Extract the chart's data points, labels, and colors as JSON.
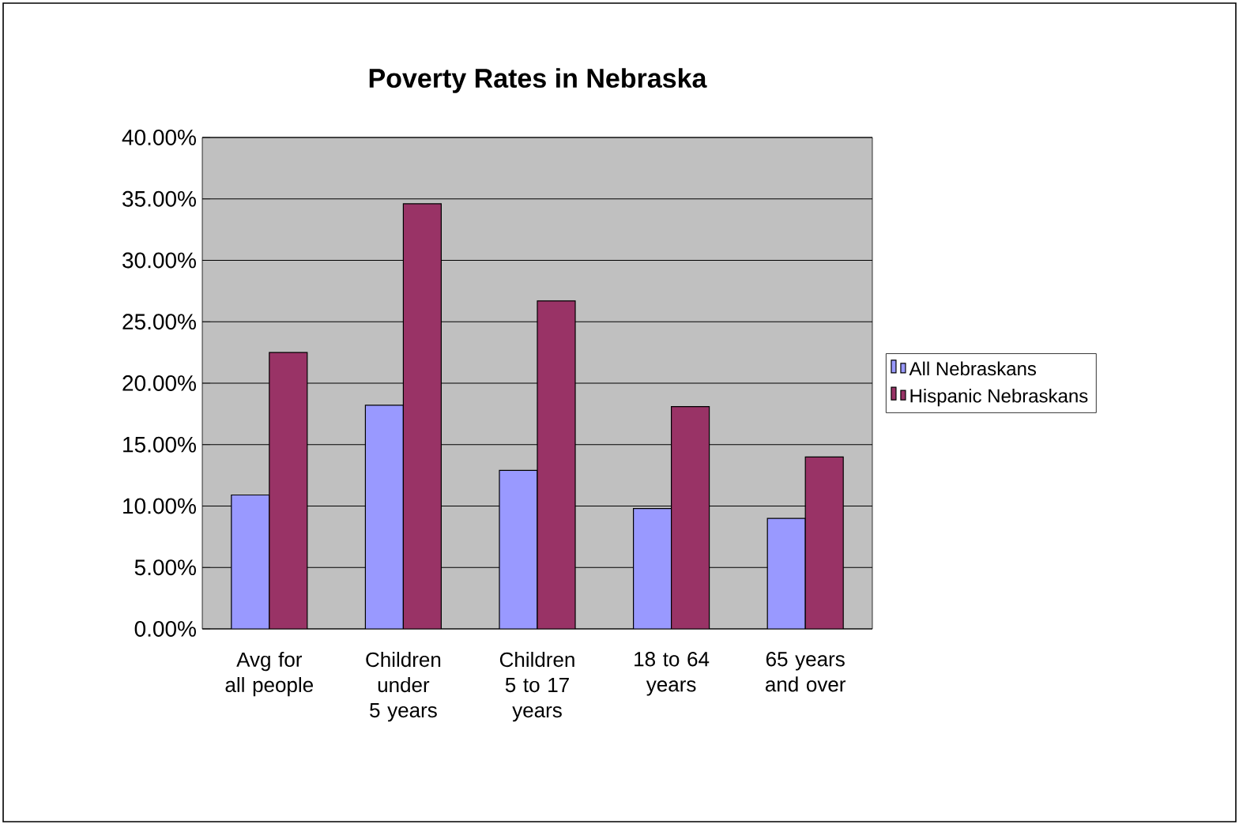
{
  "chart_data": {
    "type": "bar",
    "title": "Poverty Rates in Nebraska",
    "categories": [
      "Avg for all people",
      "Children under 5 years",
      "Children 5 to 17 years",
      "18 to 64 years",
      "65 years and over"
    ],
    "series": [
      {
        "name": "All Nebraskans",
        "color": "#9999ff",
        "values": [
          10.9,
          18.2,
          12.9,
          9.8,
          9.0
        ]
      },
      {
        "name": "Hispanic Nebraskans",
        "color": "#993366",
        "values": [
          22.5,
          34.6,
          26.7,
          18.1,
          14.0
        ]
      }
    ],
    "ylim": [
      0,
      40
    ],
    "yticks": [
      {
        "value": 0,
        "label": "0.00%"
      },
      {
        "value": 5,
        "label": "5.00%"
      },
      {
        "value": 10,
        "label": "10.00%"
      },
      {
        "value": 15,
        "label": "15.00%"
      },
      {
        "value": 20,
        "label": "20.00%"
      },
      {
        "value": 25,
        "label": "25.00%"
      },
      {
        "value": 30,
        "label": "30.00%"
      },
      {
        "value": 35,
        "label": "35.00%"
      },
      {
        "value": 40,
        "label": "40.00%"
      }
    ],
    "grid": "y",
    "legend": "right"
  }
}
